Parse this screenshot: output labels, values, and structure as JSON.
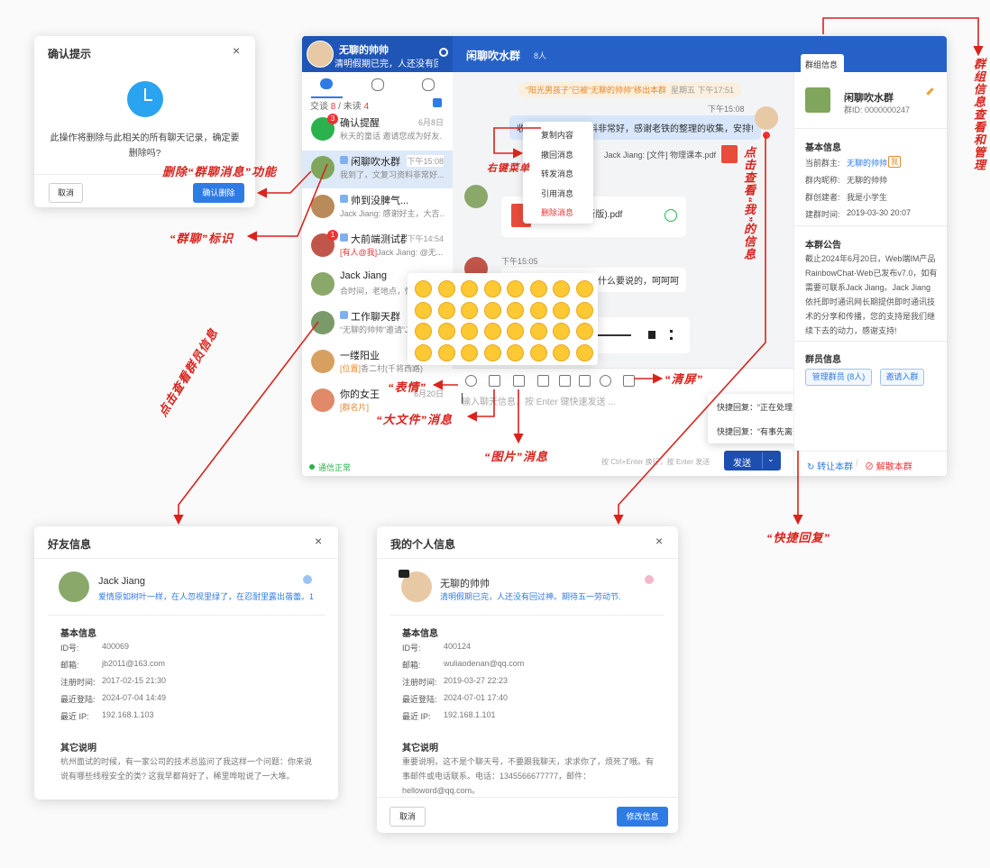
{
  "confirm_dialog": {
    "title": "确认提示",
    "message": "此操作将删除与此相关的所有聊天记录，确定要删除吗?",
    "cancel": "取消",
    "confirm": "确认删除"
  },
  "main_window": {
    "user": {
      "name": "无聊的帅帅",
      "status": "清明假期已完，人还没有回"
    },
    "sidebar": {
      "session_label": "交谈",
      "session_count": "8",
      "separator": "/",
      "unread_label": "未读",
      "unread_count": "4",
      "status": "通信正常",
      "conversations": [
        {
          "name": "确认提醒",
          "time": "6月8日",
          "preview": "秋天的童话 邀请您成为好友.",
          "badge": "3"
        },
        {
          "name": "闲聊吹水群",
          "time": "下午15:08",
          "preview": "我到了，文复习资料非常好..."
        },
        {
          "name": "帅到没脾气...",
          "preview": "Jack Jiang: 感谢好主，大吉..."
        },
        {
          "name": "大前端测试群",
          "time": "下午14:54",
          "tag": "[有人@我]",
          "preview": "Jack Jiang: @无...",
          "badge": "1"
        },
        {
          "name": "Jack Jiang",
          "preview": "合时间，老地点，快..."
        },
        {
          "name": "工作聊天群",
          "preview": "“无聊的帅帅”邀请“J..."
        },
        {
          "name": "一缕阳业",
          "tag": "[位置]",
          "preview": "香二村(千将西路)"
        },
        {
          "name": "你的女王",
          "time": "6月20日",
          "tag": "[群名片]"
        }
      ]
    },
    "chat": {
      "name": "闲聊吹水群",
      "member_count": "8人",
      "system_notice": "“阳光男孩子”已被“无聊的帅帅”移出本群",
      "system_time": "星期五 下午17:51",
      "messages": [
        {
          "time": "下午15:08",
          "text": "收到了，文复习资料非常好，感谢老铁的整理的收集，安排!"
        },
        {
          "text": "Jack Jiang: [文件] 物理课本.pdf"
        },
        {
          "text": "物理课本(解析版).pdf"
        },
        {
          "time": "下午15:05",
          "text": "，没什么要说的，呵呵呵"
        }
      ],
      "context_menu": [
        "复制内容",
        "撤回消息",
        "转发消息",
        "引用消息",
        "删除消息"
      ],
      "placeholder": "输入聊天信息，按 Enter 键快速发送 ...",
      "hint": "按 Ctrl+Enter 换行，按 Enter 发送",
      "send": "发送",
      "quick_replies": [
        "快捷回复：“正在处理紧急事情”",
        "快捷回复：“有事先离开一会儿”"
      ]
    },
    "group": {
      "tab": "群组信息",
      "name": "闲聊吹水群",
      "id": "群ID: 0000000247",
      "basic_title": "基本信息",
      "rows": [
        {
          "label": "当前群主:",
          "value": "无聊的帅帅",
          "tag": "我"
        },
        {
          "label": "群内昵称:",
          "value": "无聊的帅帅"
        },
        {
          "label": "群创建者:",
          "value": "我是小学生"
        },
        {
          "label": "建群时间:",
          "value": "2019-03-30 20:07"
        }
      ],
      "notice_title": "本群公告",
      "notice": "截止2024年6月20日，Web端IM产品RainbowChat-Web已发布v7.0，如有需要可联系Jack Jiang。Jack Jiang依托即时通讯网长期提供即时通讯技术的分享和传播，您的支持是我们继续下去的动力，感谢支持!",
      "members_title": "群员信息",
      "manage_button": "管理群员 (8人)",
      "invite_button": "邀请入群",
      "transfer": "↻ 转让本群",
      "separator": "/",
      "dismiss": "⊘ 解散本群"
    }
  },
  "friend_dialog": {
    "title": "好友信息",
    "name": "Jack Jiang",
    "signature": "爱情原如树叶一样，在人忽视里绿了，在忍耐里露出蓓蕾。1",
    "basic_title": "基本信息",
    "rows": [
      {
        "label": "ID号:",
        "value": "400069"
      },
      {
        "label": "邮箱:",
        "value": "jb2011@163.com"
      },
      {
        "label": "注册时间:",
        "value": "2017-02-15 21:30"
      },
      {
        "label": "最近登陆:",
        "value": "2024-07-04 14:49"
      },
      {
        "label": "最近 IP:",
        "value": "192.168.1.103"
      }
    ],
    "other_title": "其它说明",
    "other": "杭州面试的时候，有一家公司的技术总监问了我这样一个问题：你来说说有哪些线程安全的类? 这我早都背好了，稀里哗啦说了一大堆。"
  },
  "my_dialog": {
    "title": "我的个人信息",
    "name": "无聊的帅帅",
    "signature": "清明假期已完，人还没有回过神。期待五一劳动节.",
    "basic_title": "基本信息",
    "rows": [
      {
        "label": "ID号:",
        "value": "400124"
      },
      {
        "label": "邮箱:",
        "value": "wuliaodenan@qq.com"
      },
      {
        "label": "注册时间:",
        "value": "2019-03-27 22:23"
      },
      {
        "label": "最近登陆:",
        "value": "2024-07-01 17:40"
      },
      {
        "label": "最近 IP:",
        "value": "192.168.1.101"
      }
    ],
    "other_title": "其它说明",
    "other": "重要说明，这不是个聊天号，不要跟我聊天，求求你了，烦死了哦。有事邮件或电话联系。电话：1345566677777，邮件：helloword@qq.com。",
    "cancel": "取消",
    "submit": "修改信息"
  },
  "annotations": {
    "delete": "删除“群聊消息”功能",
    "group_mark": "“群聊”标识",
    "members": "点击查看群员信息",
    "context_menu": "右键菜单",
    "me": "点击查看“我”的信息",
    "group_info": "群组信息查看和管理",
    "emoji": "“表情”",
    "file": "“大文件”消息",
    "image": "“图片”消息",
    "clear": "“清屏”",
    "quick_reply": "“快捷回复”"
  }
}
